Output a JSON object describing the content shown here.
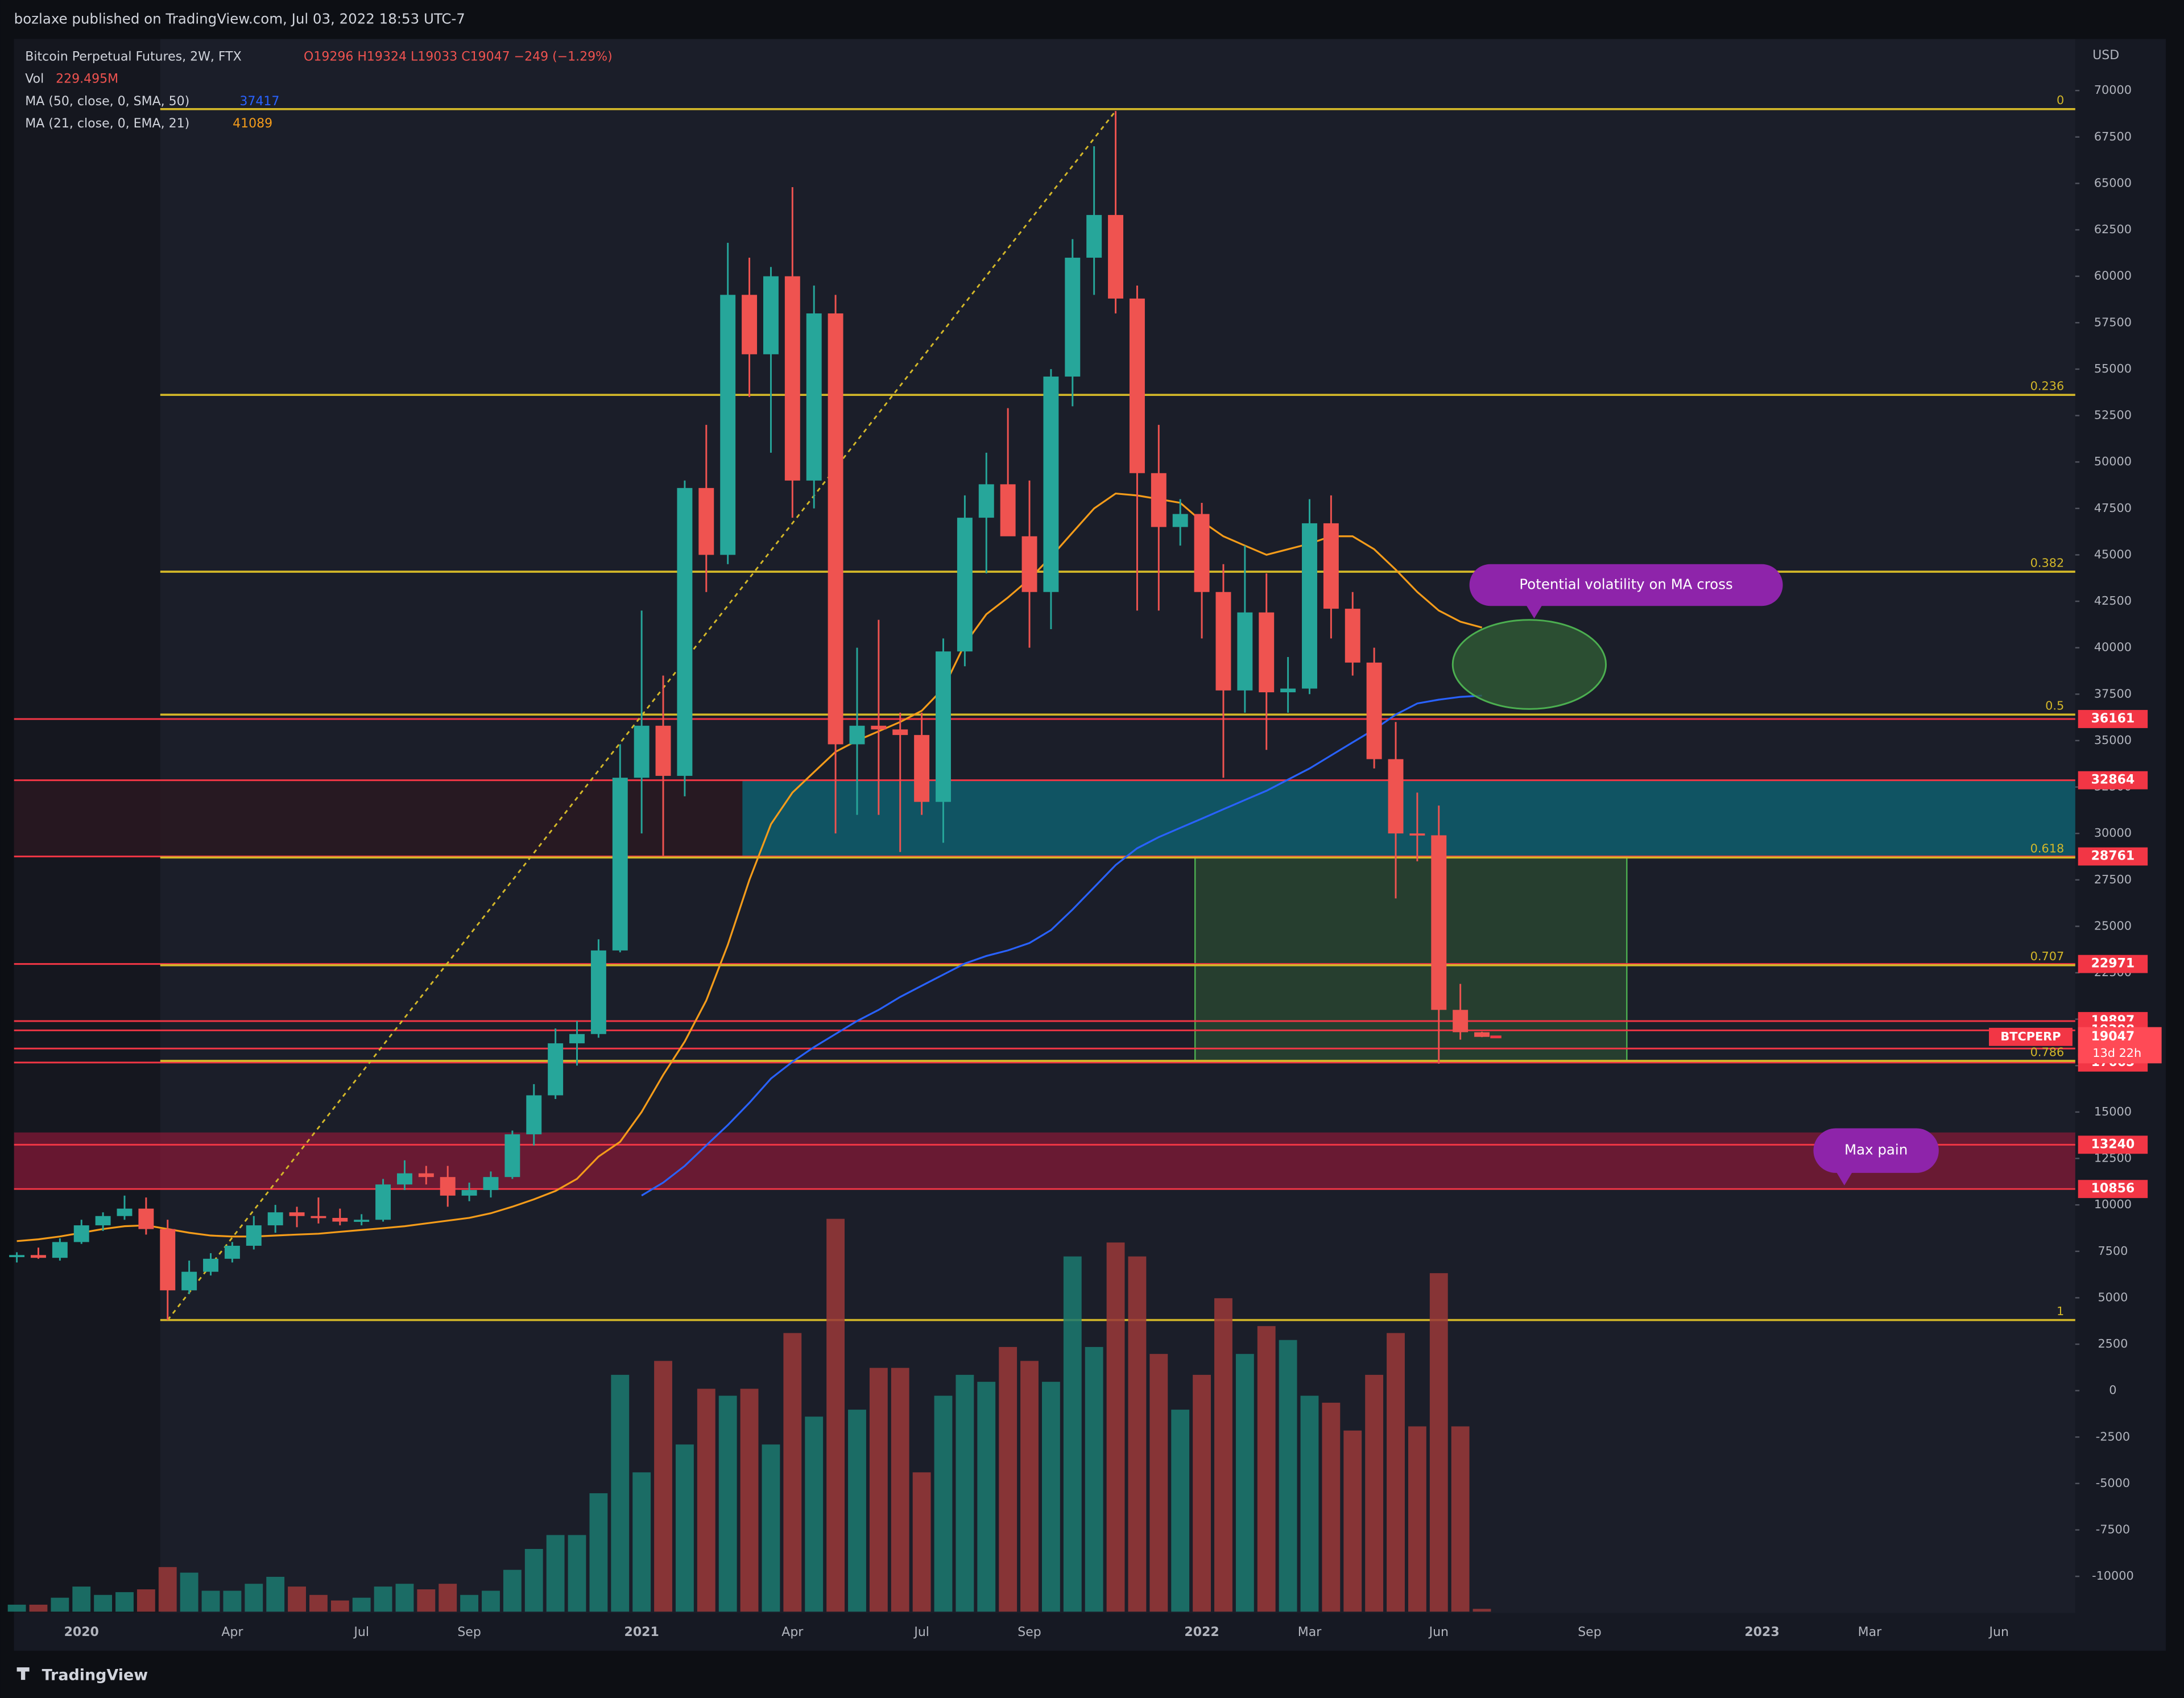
{
  "published_by": "bozlaxe published on TradingView.com, Jul 03, 2022 18:53 UTC-7",
  "footer": "TradingView",
  "chart_data": {
    "type": "candlestick",
    "title": "Bitcoin Perpetual Futures, 2W, FTX",
    "ohlc_text": "O19296 H19324 L19033 C19047 −249 (−1.29%)",
    "volume_label": "Vol",
    "volume_text": "229.495M",
    "currency": "USD",
    "up_color": "#26a69a",
    "down_color": "#ef5350",
    "volume_up_color": "#1b7a70",
    "volume_down_color": "#9a3838",
    "categories": [
      null,
      null,
      null,
      "2020",
      null,
      null,
      null,
      null,
      null,
      null,
      "Apr",
      null,
      null,
      null,
      null,
      null,
      "Jul",
      null,
      null,
      null,
      null,
      "Sep",
      null,
      null,
      null,
      null,
      null,
      null,
      null,
      "2021",
      null,
      null,
      null,
      null,
      null,
      null,
      "Apr",
      null,
      null,
      null,
      null,
      null,
      "Jul",
      null,
      null,
      null,
      null,
      "Sep",
      null,
      null,
      null,
      null,
      null,
      null,
      null,
      "2022",
      null,
      null,
      null,
      null,
      "Mar",
      null,
      null,
      null,
      null,
      null,
      "Jun",
      null,
      null,
      null,
      null,
      null,
      null,
      "Sep",
      null,
      null,
      null,
      null,
      null,
      null,
      null,
      "2023",
      null,
      null,
      null,
      null,
      "Mar",
      null,
      null,
      null,
      null,
      null,
      "Jun",
      null,
      null,
      null
    ],
    "open": [
      7200,
      7300,
      7150,
      8000,
      8900,
      9400,
      9800,
      8700,
      5400,
      6400,
      7100,
      7800,
      8900,
      9600,
      9400,
      9300,
      9100,
      9200,
      11100,
      11700,
      11500,
      10500,
      10800,
      11500,
      13800,
      15900,
      18700,
      19200,
      23700,
      33000,
      35800,
      33100,
      48600,
      45000,
      59000,
      55800,
      60000,
      49000,
      58000,
      34800,
      35800,
      35600,
      35300,
      31700,
      39800,
      47000,
      48800,
      46000,
      43000,
      54600,
      61000,
      63300,
      58800,
      49400,
      46500,
      47200,
      43000,
      37700,
      41900,
      37600,
      37800,
      46700,
      42100,
      39200,
      34000,
      30000,
      29900,
      20500,
      19296,
      null,
      null,
      null,
      null,
      null,
      null,
      null,
      null,
      null,
      null,
      null,
      null,
      null,
      null,
      null,
      null,
      null,
      null,
      null,
      null,
      null,
      null,
      null,
      null,
      null,
      null,
      null
    ],
    "high": [
      7450,
      7700,
      8200,
      9200,
      9600,
      10500,
      10400,
      9200,
      7000,
      7400,
      8000,
      9400,
      10000,
      9900,
      10400,
      9800,
      9500,
      11400,
      12400,
      12100,
      12100,
      11200,
      11800,
      14000,
      16500,
      19500,
      19900,
      24300,
      34800,
      42000,
      38500,
      49000,
      52000,
      61800,
      61000,
      60500,
      64800,
      59500,
      59000,
      40000,
      41500,
      36500,
      36500,
      40500,
      48200,
      50500,
      52900,
      49000,
      55000,
      62000,
      67000,
      68900,
      59500,
      52000,
      48000,
      47800,
      44500,
      45500,
      44000,
      39500,
      48000,
      48200,
      43000,
      40000,
      36000,
      32200,
      31500,
      21900,
      19324,
      null,
      null,
      null,
      null,
      null,
      null,
      null,
      null,
      null,
      null,
      null,
      null,
      null,
      null,
      null,
      null,
      null,
      null,
      null,
      null,
      null,
      null,
      null,
      null,
      null,
      null,
      null
    ],
    "low": [
      6900,
      7100,
      7000,
      7900,
      8600,
      9200,
      8400,
      3800,
      5200,
      6200,
      6900,
      7600,
      8500,
      8800,
      9000,
      8900,
      8900,
      9100,
      10800,
      11100,
      9900,
      10200,
      10400,
      11400,
      13200,
      15700,
      17500,
      19000,
      23600,
      30000,
      28800,
      32000,
      43000,
      44500,
      53500,
      50500,
      47000,
      47500,
      30000,
      31000,
      31000,
      29000,
      31000,
      29500,
      39000,
      44000,
      46500,
      40000,
      41000,
      53000,
      59000,
      58000,
      42000,
      42000,
      45500,
      40500,
      33000,
      36500,
      34500,
      36500,
      37500,
      40500,
      38500,
      33500,
      26500,
      28500,
      17600,
      18900,
      19033,
      null,
      null,
      null,
      null,
      null,
      null,
      null,
      null,
      null,
      null,
      null,
      null,
      null,
      null,
      null,
      null,
      null,
      null,
      null,
      null,
      null,
      null,
      null,
      null,
      null,
      null,
      null
    ],
    "close": [
      7300,
      7150,
      8000,
      8900,
      9400,
      9800,
      8700,
      5400,
      6400,
      7100,
      7800,
      8900,
      9600,
      9400,
      9300,
      9100,
      9200,
      11100,
      11700,
      11500,
      10500,
      10800,
      11500,
      13800,
      15900,
      18700,
      19200,
      23700,
      33000,
      35800,
      33100,
      48600,
      45000,
      59000,
      55800,
      60000,
      49000,
      58000,
      34800,
      35800,
      35600,
      35300,
      31700,
      39800,
      47000,
      48800,
      46000,
      43000,
      54600,
      61000,
      63300,
      58800,
      49400,
      46500,
      47200,
      43000,
      37700,
      41900,
      37600,
      37800,
      46700,
      42100,
      39200,
      34000,
      30000,
      29900,
      20500,
      19300,
      19047,
      null,
      null,
      null,
      null,
      null,
      null,
      null,
      null,
      null,
      null,
      null,
      null,
      null,
      null,
      null,
      null,
      null,
      null,
      null,
      null,
      null,
      null,
      null,
      null,
      null,
      null,
      null
    ],
    "volume": [
      575,
      575,
      1150,
      2070,
      1380,
      1610,
      1840,
      3680,
      3220,
      1725,
      1725,
      2300,
      2875,
      2070,
      1380,
      920,
      1150,
      2070,
      2300,
      1840,
      2300,
      1380,
      1725,
      3450,
      5175,
      6325,
      6325,
      9775,
      19550,
      11500,
      20700,
      13800,
      18400,
      17825,
      18400,
      13800,
      23000,
      16100,
      32430,
      16675,
      20125,
      20125,
      11500,
      17825,
      19550,
      18975,
      21850,
      20700,
      18975,
      29325,
      21850,
      30475,
      29325,
      21275,
      16675,
      19550,
      25875,
      21275,
      23575,
      22425,
      17825,
      17250,
      14950,
      19550,
      23000,
      15295,
      27945,
      15295,
      229.495,
      null,
      null,
      null,
      null,
      null,
      null,
      null,
      null,
      null,
      null,
      null,
      null,
      null,
      null,
      null,
      null,
      null,
      null,
      null,
      null,
      null,
      null,
      null,
      null,
      null,
      null,
      null
    ],
    "ma_series": [
      {
        "name": "MA (50, close, 0, SMA, 50)",
        "color": "#2962ff",
        "values": [
          null,
          null,
          null,
          null,
          null,
          null,
          null,
          null,
          null,
          null,
          null,
          null,
          null,
          null,
          null,
          null,
          null,
          null,
          null,
          null,
          null,
          null,
          null,
          null,
          null,
          null,
          null,
          null,
          null,
          10500,
          11200,
          12100,
          13200,
          14300,
          15500,
          16800,
          17700,
          18500,
          19200,
          19900,
          20500,
          21200,
          21800,
          22400,
          23000,
          23400,
          23700,
          24100,
          24800,
          25900,
          27100,
          28300,
          29200,
          29800,
          30300,
          30800,
          31300,
          31800,
          32300,
          32900,
          33500,
          34200,
          34900,
          35600,
          36400,
          37000,
          37200,
          37350,
          37417,
          null,
          null,
          null,
          null,
          null,
          null,
          null,
          null,
          null,
          null,
          null,
          null,
          null,
          null,
          null,
          null,
          null,
          null,
          null,
          null,
          null,
          null,
          null,
          null,
          null,
          null,
          null
        ]
      },
      {
        "name": "MA (21, close, 0, EMA, 21)",
        "color": "#f59c1a",
        "values": [
          8050,
          8150,
          8300,
          8500,
          8700,
          8850,
          8900,
          8700,
          8500,
          8350,
          8300,
          8300,
          8350,
          8400,
          8450,
          8550,
          8650,
          8750,
          8850,
          9000,
          9150,
          9300,
          9550,
          9900,
          10300,
          10750,
          11400,
          12600,
          13400,
          15000,
          17000,
          18800,
          21000,
          24000,
          27500,
          30500,
          32200,
          33300,
          34400,
          35000,
          35500,
          36000,
          36600,
          37800,
          40200,
          41800,
          42700,
          43700,
          44900,
          46200,
          47500,
          48300,
          48200,
          48000,
          47800,
          46800,
          46000,
          45500,
          45000,
          45300,
          45600,
          46000,
          46000,
          45300,
          44200,
          43000,
          42000,
          41400,
          41089,
          null,
          null,
          null,
          null,
          null,
          null,
          null,
          null,
          null,
          null,
          null,
          null,
          null,
          null,
          null,
          null,
          null,
          null,
          null,
          null,
          null,
          null,
          null,
          null,
          null,
          null,
          null
        ]
      }
    ],
    "fib_color": "#d4b829",
    "fib": [
      {
        "level": 0,
        "price": 69000
      },
      {
        "level": 0.236,
        "price": 53613
      },
      {
        "level": 0.382,
        "price": 44094
      },
      {
        "level": 0.5,
        "price": 36400
      },
      {
        "level": 0.618,
        "price": 28706
      },
      {
        "level": 0.707,
        "price": 22904
      },
      {
        "level": 0.786,
        "price": 17753
      },
      {
        "level": 1,
        "price": 3800
      }
    ],
    "level_color": "#f23645",
    "price_levels": [
      36161,
      32864,
      28761,
      22971,
      19897,
      19398,
      18420,
      17665,
      13240,
      10856
    ],
    "last_price": {
      "symbol": "BTCPERP",
      "countdown": "13d 22h"
    },
    "zones": [
      {
        "low": 28761,
        "high": 32864,
        "color": "#0b6b7c"
      },
      {
        "low": 10856,
        "high": 13900,
        "color": "#8a1838"
      }
    ],
    "box": {
      "low": 17753,
      "high": 28761,
      "color": "#2f5a34"
    },
    "annotations": [
      "Potential volatility on MA cross",
      "Max pain"
    ],
    "ylim": [
      -11900,
      72775
    ],
    "yticks": [
      70000,
      67500,
      65000,
      62500,
      60000,
      57500,
      55000,
      52500,
      50000,
      47500,
      45000,
      42500,
      40000,
      37500,
      35000,
      32500,
      30000,
      27500,
      25000,
      22500,
      20000,
      17500,
      15000,
      12500,
      10000,
      7500,
      5000,
      2500,
      0,
      -2500,
      -5000,
      -7500,
      -10000
    ]
  }
}
